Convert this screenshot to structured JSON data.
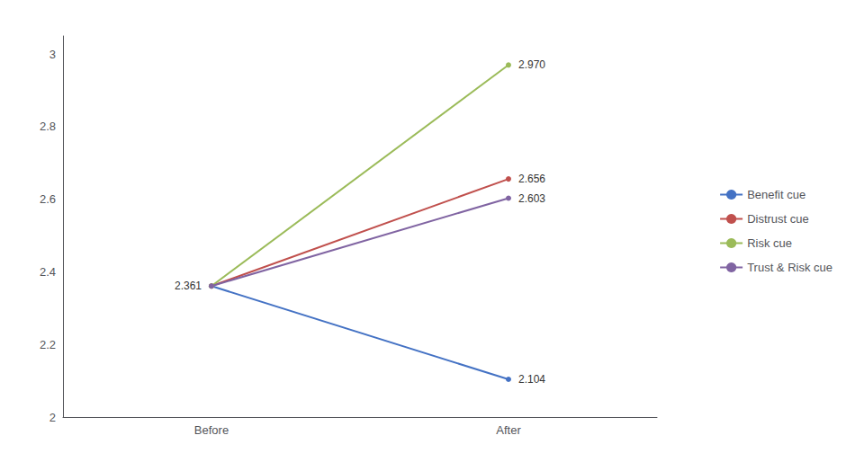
{
  "chart_data": {
    "type": "line",
    "categories": [
      "Before",
      "After"
    ],
    "series": [
      {
        "name": "Benefit cue",
        "color": "#4472C4",
        "values": [
          2.361,
          2.104
        ],
        "value_labels": [
          "2.361",
          "2.104"
        ]
      },
      {
        "name": "Distrust cue",
        "color": "#C0504D",
        "values": [
          2.361,
          2.656
        ],
        "value_labels": [
          null,
          "2.656"
        ]
      },
      {
        "name": "Risk cue",
        "color": "#9BBB59",
        "values": [
          2.361,
          2.97
        ],
        "value_labels": [
          null,
          "2.970"
        ]
      },
      {
        "name": "Trust & Risk cue",
        "color": "#8064A2",
        "values": [
          2.361,
          2.603
        ],
        "value_labels": [
          null,
          "2.603"
        ]
      }
    ],
    "ylim": [
      2.0,
      3.05
    ],
    "yticks": [
      2,
      2.2,
      2.4,
      2.6,
      2.8,
      3
    ],
    "grid": false,
    "legend": "right",
    "data_labels": true
  }
}
